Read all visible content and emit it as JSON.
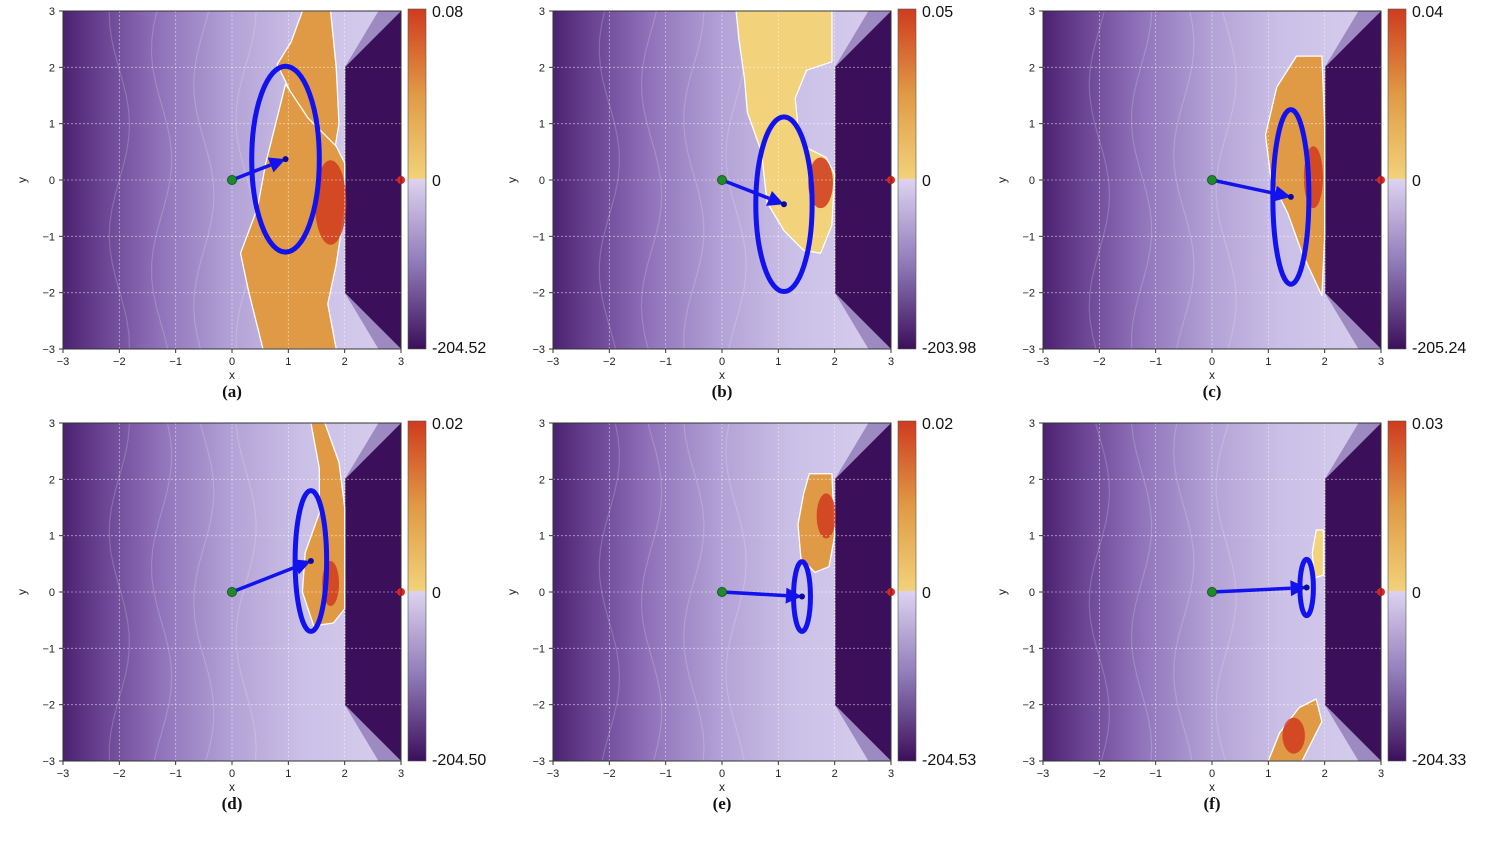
{
  "chart_data": [
    {
      "type": "heatmap",
      "caption": "(a)",
      "xlabel": "x",
      "ylabel": "y",
      "xlim": [
        -3,
        3
      ],
      "ylim": [
        -3,
        3
      ],
      "xticks": [
        "−3",
        "−2",
        "−1",
        "0",
        "1",
        "2",
        "3"
      ],
      "yticks": [
        "3",
        "2",
        "1",
        "0",
        "−1",
        "−2",
        "−3"
      ],
      "colorbar": {
        "max": "0.08",
        "zero": "0",
        "min": "-204.52"
      },
      "start": [
        0,
        0
      ],
      "goal": [
        3,
        0
      ],
      "predicted_mean": [
        0.95,
        0.37
      ],
      "ellipse_radii": [
        0.6,
        1.65
      ],
      "wall_x": 2.0
    },
    {
      "type": "heatmap",
      "caption": "(b)",
      "xlabel": "x",
      "ylabel": "y",
      "xlim": [
        -3,
        3
      ],
      "ylim": [
        -3,
        3
      ],
      "xticks": [
        "−3",
        "−2",
        "−1",
        "0",
        "1",
        "2",
        "3"
      ],
      "yticks": [
        "3",
        "2",
        "1",
        "0",
        "−1",
        "−2",
        "−3"
      ],
      "colorbar": {
        "max": "0.05",
        "zero": "0",
        "min": "-203.98"
      },
      "start": [
        0,
        0
      ],
      "goal": [
        3,
        0
      ],
      "predicted_mean": [
        1.1,
        -0.43
      ],
      "ellipse_radii": [
        0.5,
        1.55
      ],
      "wall_x": 2.0
    },
    {
      "type": "heatmap",
      "caption": "(c)",
      "xlabel": "x",
      "ylabel": "y",
      "xlim": [
        -3,
        3
      ],
      "ylim": [
        -3,
        3
      ],
      "xticks": [
        "−3",
        "−2",
        "−1",
        "0",
        "1",
        "2",
        "3"
      ],
      "yticks": [
        "3",
        "2",
        "1",
        "0",
        "−1",
        "−2",
        "−3"
      ],
      "colorbar": {
        "max": "0.04",
        "zero": "0",
        "min": "-205.24"
      },
      "start": [
        0,
        0
      ],
      "goal": [
        3,
        0
      ],
      "predicted_mean": [
        1.4,
        -0.3
      ],
      "ellipse_radii": [
        0.32,
        1.55
      ],
      "wall_x": 2.0
    },
    {
      "type": "heatmap",
      "caption": "(d)",
      "xlabel": "x",
      "ylabel": "y",
      "xlim": [
        -3,
        3
      ],
      "ylim": [
        -3,
        3
      ],
      "xticks": [
        "−3",
        "−2",
        "−1",
        "0",
        "1",
        "2",
        "3"
      ],
      "yticks": [
        "3",
        "2",
        "1",
        "0",
        "−1",
        "−2",
        "−3"
      ],
      "colorbar": {
        "max": "0.02",
        "zero": "0",
        "min": "-204.50"
      },
      "start": [
        0,
        0
      ],
      "goal": [
        3,
        0
      ],
      "predicted_mean": [
        1.4,
        0.55
      ],
      "ellipse_radii": [
        0.28,
        1.25
      ],
      "wall_x": 2.0
    },
    {
      "type": "heatmap",
      "caption": "(e)",
      "xlabel": "x",
      "ylabel": "y",
      "xlim": [
        -3,
        3
      ],
      "ylim": [
        -3,
        3
      ],
      "xticks": [
        "−3",
        "−2",
        "−1",
        "0",
        "1",
        "2",
        "3"
      ],
      "yticks": [
        "3",
        "2",
        "1",
        "0",
        "−1",
        "−2",
        "−3"
      ],
      "colorbar": {
        "max": "0.02",
        "zero": "0",
        "min": "-204.53"
      },
      "start": [
        0,
        0
      ],
      "goal": [
        3,
        0
      ],
      "predicted_mean": [
        1.42,
        -0.08
      ],
      "ellipse_radii": [
        0.15,
        0.62
      ],
      "wall_x": 2.0
    },
    {
      "type": "heatmap",
      "caption": "(f)",
      "xlabel": "x",
      "ylabel": "y",
      "xlim": [
        -3,
        3
      ],
      "ylim": [
        -3,
        3
      ],
      "xticks": [
        "−3",
        "−2",
        "−1",
        "0",
        "1",
        "2",
        "3"
      ],
      "yticks": [
        "3",
        "2",
        "1",
        "0",
        "−1",
        "−2",
        "−3"
      ],
      "colorbar": {
        "max": "0.03",
        "zero": "0",
        "min": "-204.33"
      },
      "start": [
        0,
        0
      ],
      "goal": [
        3,
        0
      ],
      "predicted_mean": [
        1.68,
        0.08
      ],
      "ellipse_radii": [
        0.12,
        0.5
      ],
      "wall_x": 2.0
    }
  ],
  "colors": {
    "arrow": "#1212ee",
    "start_marker": "#1f8a2a",
    "goal_marker": "#e82020",
    "purple_dark": "#3b0f5a",
    "purple_light": "#d5ccec",
    "orange": "#e09a45",
    "red": "#cf3b1f",
    "gold": "#f2d27a"
  }
}
